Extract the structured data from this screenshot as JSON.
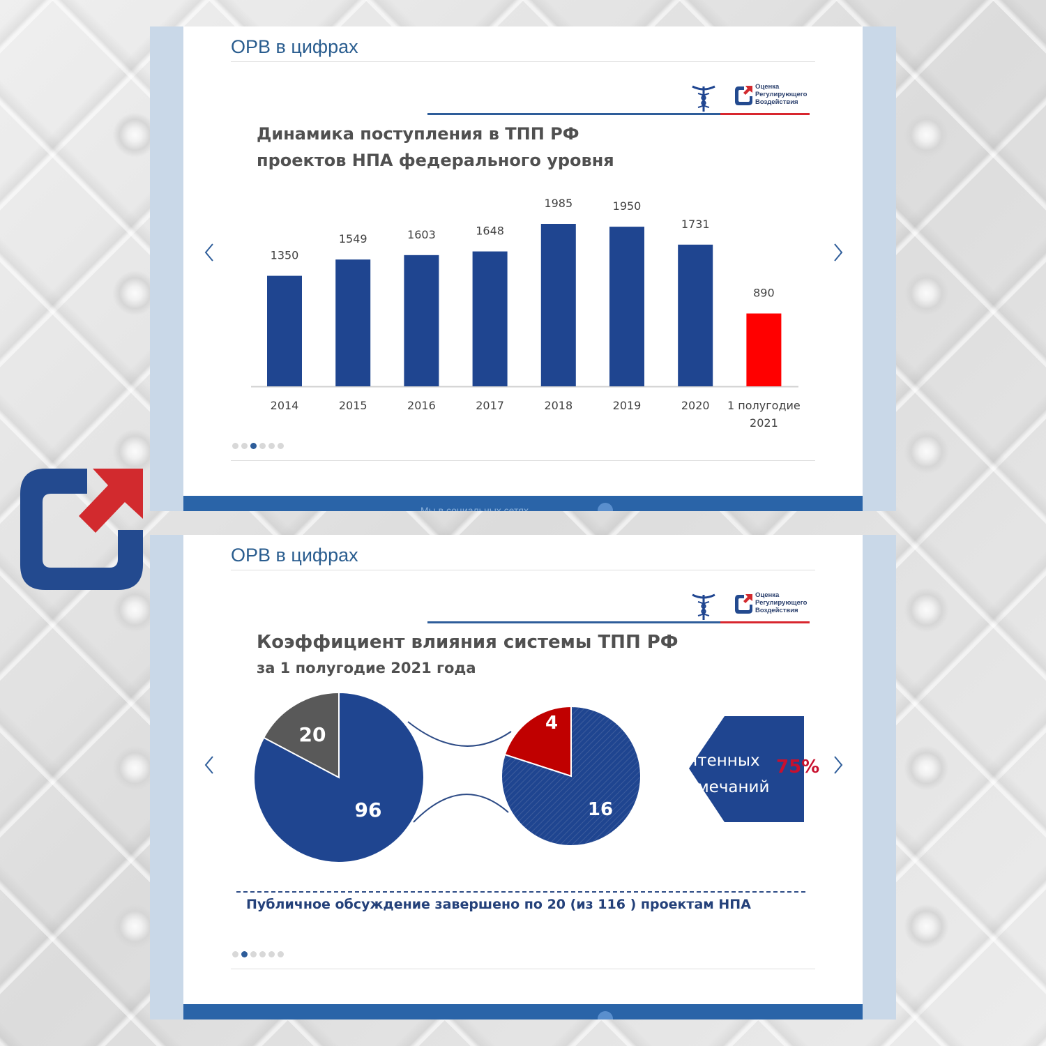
{
  "slides": [
    {
      "section_title": "ОРВ в цифрах",
      "heading_line1": "Динамика поступления в ТПП РФ",
      "heading_line2": "проектов НПА федерального уровня",
      "logo_text": [
        "Оценка",
        "Регулирующего",
        "Воздействия"
      ],
      "footer_text": "Мы в социальных сетях"
    },
    {
      "section_title": "ОРВ в цифрах",
      "heading_line1": "Коэффициент влияния системы ТПП РФ",
      "heading_line2": "за 1 полугодие 2021 года",
      "logo_text": [
        "Оценка",
        "Регулирующего",
        "Воздействия"
      ],
      "hex_line1": "учтенных",
      "hex_line2": "замечаний",
      "percent": "75%",
      "caption": "Публичное обсуждение завершено по 20 (из 116 ) проектам НПА"
    }
  ],
  "colors": {
    "bar_blue": "#1f4590",
    "bar_red": "#ff0000",
    "pie_gray": "#595959",
    "pie_red": "#c00000"
  },
  "chart_data": [
    {
      "type": "bar",
      "title": "Динамика поступления в ТПП РФ проектов НПА федерального уровня",
      "categories": [
        "2014",
        "2015",
        "2016",
        "2017",
        "2018",
        "2019",
        "2020",
        "1 полугодие 2021"
      ],
      "category_lines": [
        [
          "2014"
        ],
        [
          "2015"
        ],
        [
          "2016"
        ],
        [
          "2017"
        ],
        [
          "2018"
        ],
        [
          "2019"
        ],
        [
          "2020"
        ],
        [
          "1 полугодие",
          "2021"
        ]
      ],
      "values": [
        1350,
        1549,
        1603,
        1648,
        1985,
        1950,
        1731,
        890
      ],
      "highlight_index": 7,
      "ylim": [
        0,
        2000
      ],
      "xlabel": "",
      "ylabel": ""
    },
    {
      "type": "pie",
      "title": "Коэффициент влияния системы ТПП РФ за 1 полугодие 2021 года",
      "pies": [
        {
          "name": "all",
          "labels": [
            "20",
            "96"
          ],
          "values": [
            20,
            96
          ]
        },
        {
          "name": "discussed",
          "labels": [
            "4",
            "16"
          ],
          "values": [
            4,
            16
          ]
        }
      ]
    }
  ]
}
